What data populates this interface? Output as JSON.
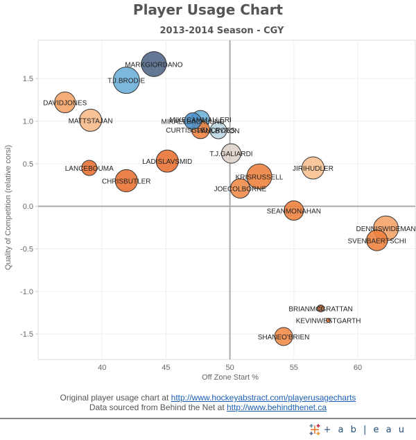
{
  "header": {
    "title": "Player Usage Chart",
    "subtitle": "2013-2014 Season - CGY"
  },
  "footer": {
    "line1_text": "Original player usage chart at ",
    "line1_link": "http://www.hockeyabstract.com/playerusagecharts",
    "line2_text": "Data sourced from Behind the Net at ",
    "line2_link": "http://www.behindthenet.ca"
  },
  "branding": {
    "logo_icon": "tableau-cross-icon",
    "logo_text": "+ a b | e a u"
  },
  "chart_data": {
    "type": "scatter",
    "title": "Player Usage Chart",
    "subtitle": "2013-2014 Season - CGY",
    "xlabel": "Off Zone Start %",
    "ylabel": "Quality of Competition (relative corsi)",
    "xlim": [
      35.0,
      64.5
    ],
    "ylim": [
      -1.8,
      1.95
    ],
    "xticks": [
      40,
      45,
      50,
      55,
      60
    ],
    "yticks": [
      1.5,
      1.0,
      0.5,
      0.0,
      -0.5,
      -1.0,
      -1.5
    ],
    "ytick_labels": [
      "1.5",
      "1.0",
      "0.5",
      "0.0",
      "-0.5",
      "-1.0",
      "-1.5"
    ],
    "reference_lines": {
      "x": 50,
      "y": 0.0
    },
    "grid": true,
    "legend": "none",
    "encoding": {
      "size": "ice time (relative)",
      "color": "relative corsi (blue positive, orange negative)"
    },
    "points": [
      {
        "name": "MARKGIORDANO",
        "x": 44.05,
        "y": 1.67,
        "size": 18,
        "color": "#4e6586"
      },
      {
        "name": "T.J.BRODIE",
        "x": 41.9,
        "y": 1.48,
        "size": 19,
        "color": "#6aaed6"
      },
      {
        "name": "DAVIDJONES",
        "x": 37.1,
        "y": 1.22,
        "size": 15,
        "color": "#f4a164"
      },
      {
        "name": "MATTSTAJAN",
        "x": 39.1,
        "y": 1.01,
        "size": 16,
        "color": "#f8b888"
      },
      {
        "name": "MIKAELBACKLUND",
        "x": 47.1,
        "y": 1.0,
        "size": 12,
        "color": "#4a8fc8"
      },
      {
        "name": "MIKECAMMALLERI",
        "x": 47.7,
        "y": 1.02,
        "size": 13,
        "color": "#6aaed6"
      },
      {
        "name": "CURTISGLENCROSS",
        "x": 47.7,
        "y": 0.9,
        "size": 13,
        "color": "#ee7f3c"
      },
      {
        "name": "PAULBYRON",
        "x": 49.1,
        "y": 0.89,
        "size": 12,
        "color": "#b9d5e3"
      },
      {
        "name": "T.J.GALIARDI",
        "x": 50.1,
        "y": 0.62,
        "size": 14,
        "color": "#ddd2c9"
      },
      {
        "name": "LANCEBOUMA",
        "x": 39.0,
        "y": 0.45,
        "size": 11,
        "color": "#e8702f"
      },
      {
        "name": "CHRISBUTLER",
        "x": 41.9,
        "y": 0.3,
        "size": 16,
        "color": "#e8702f"
      },
      {
        "name": "LADISLAVSMID",
        "x": 45.1,
        "y": 0.53,
        "size": 16,
        "color": "#e8702f"
      },
      {
        "name": "KRISRUSSELL",
        "x": 52.3,
        "y": 0.35,
        "size": 18,
        "color": "#ee7f3c"
      },
      {
        "name": "JOECOLBORNE",
        "x": 50.8,
        "y": 0.21,
        "size": 14,
        "color": "#f08a47"
      },
      {
        "name": "JIRIHUDLER",
        "x": 56.5,
        "y": 0.45,
        "size": 16,
        "color": "#f9bf8f"
      },
      {
        "name": "SEANMONAHAN",
        "x": 55.0,
        "y": -0.05,
        "size": 14,
        "color": "#ee7f3c"
      },
      {
        "name": "DENNISWIDEMAN",
        "x": 62.2,
        "y": -0.26,
        "size": 18,
        "color": "#f4a164"
      },
      {
        "name": "SVENBAERTSCHI",
        "x": 61.5,
        "y": -0.4,
        "size": 15,
        "color": "#ee7f3c"
      },
      {
        "name": "BRIANMCGRATTAN",
        "x": 57.1,
        "y": -1.2,
        "size": 5,
        "color": "#a35a33"
      },
      {
        "name": "KEVINWESTGARTH",
        "x": 57.7,
        "y": -1.34,
        "size": 3,
        "color": "#e8702f"
      },
      {
        "name": "SHANEO'BRIEN",
        "x": 54.2,
        "y": -1.53,
        "size": 13,
        "color": "#f08a47"
      }
    ]
  }
}
